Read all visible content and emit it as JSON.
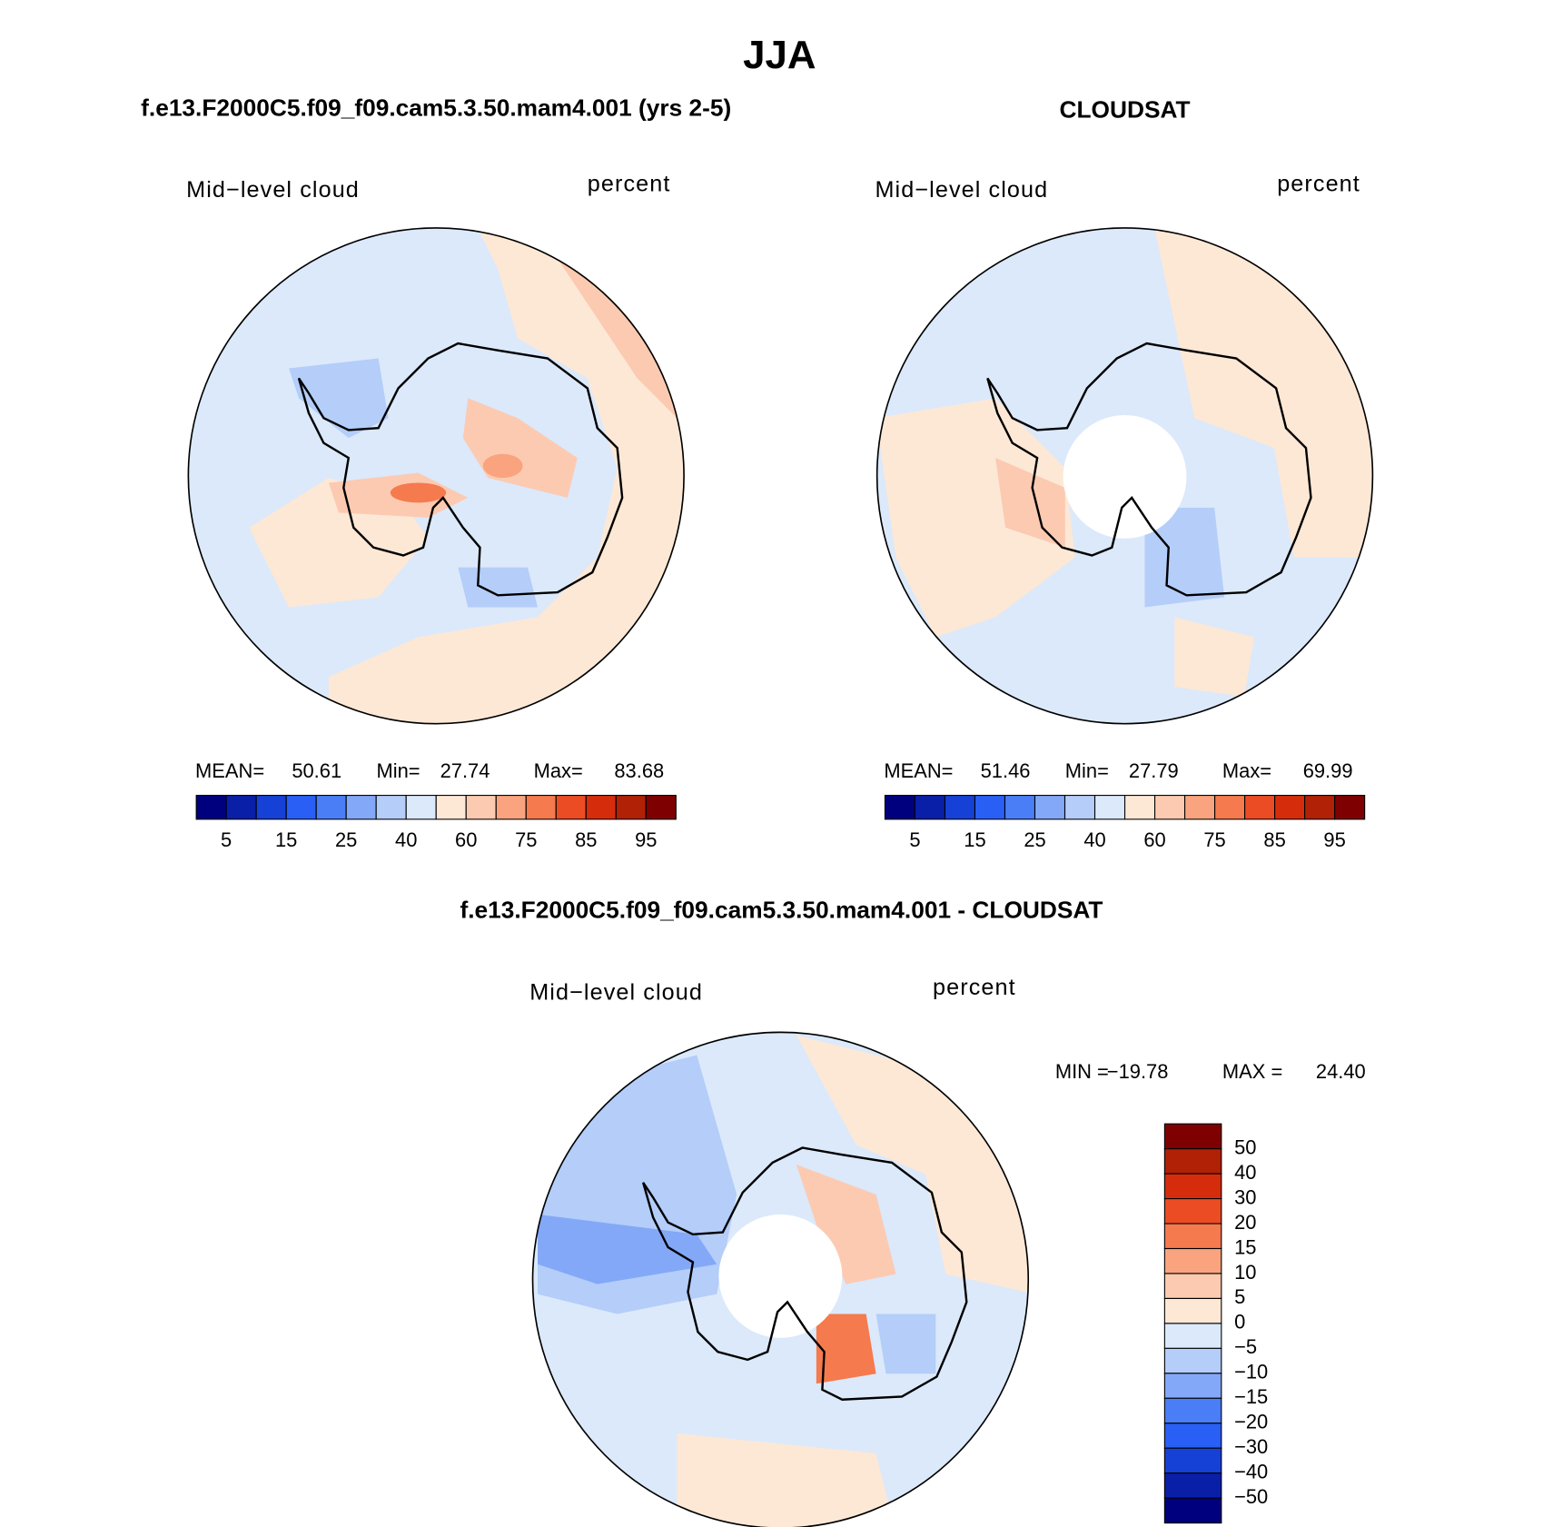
{
  "title": "JJA",
  "panels": [
    {
      "title": "f.e13.F2000C5.f09_f09.cam5.3.50.mam4.001 (yrs 2-5)",
      "variable": "Mid−level cloud",
      "units": "percent",
      "stats": [
        "MEAN=",
        "50.61",
        "Min=",
        "27.74",
        "Max=",
        "83.68"
      ],
      "colorbar": {
        "colors": [
          "#00007f",
          "#0a1fa8",
          "#1641d6",
          "#2a5ff5",
          "#4a7ef7",
          "#83a8f7",
          "#b4cdf9",
          "#dbe9fa",
          "#fde8d6",
          "#fccab1",
          "#f9a47e",
          "#f57a4e",
          "#ec4c24",
          "#d52d0c",
          "#b02106",
          "#7f0000"
        ],
        "labels": [
          "5",
          "15",
          "25",
          "40",
          "60",
          "75",
          "85",
          "95"
        ]
      }
    },
    {
      "title": "CLOUDSAT",
      "variable": "Mid−level cloud",
      "units": "percent",
      "stats": [
        "MEAN=",
        "51.46",
        "Min=",
        "27.79",
        "Max=",
        "69.99"
      ],
      "colorbar": {
        "colors": [
          "#00007f",
          "#0a1fa8",
          "#1641d6",
          "#2a5ff5",
          "#4a7ef7",
          "#83a8f7",
          "#b4cdf9",
          "#dbe9fa",
          "#fde8d6",
          "#fccab1",
          "#f9a47e",
          "#f57a4e",
          "#ec4c24",
          "#d52d0c",
          "#b02106",
          "#7f0000"
        ],
        "labels": [
          "5",
          "15",
          "25",
          "40",
          "60",
          "75",
          "85",
          "95"
        ]
      }
    },
    {
      "title": "f.e13.F2000C5.f09_f09.cam5.3.50.mam4.001 - CLOUDSAT",
      "variable": "Mid−level cloud",
      "units": "percent",
      "stats": [
        "MIN =",
        "−19.78",
        "MAX =",
        "24.40"
      ],
      "colorbar": {
        "colors": [
          "#7f0000",
          "#b02106",
          "#d52d0c",
          "#ec4c24",
          "#f57a4e",
          "#f9a47e",
          "#fccab1",
          "#fde8d6",
          "#dbe9fa",
          "#b4cdf9",
          "#83a8f7",
          "#4a7ef7",
          "#2a5ff5",
          "#1641d6",
          "#0a1fa8",
          "#00007f"
        ],
        "labels": [
          "50",
          "40",
          "30",
          "20",
          "15",
          "10",
          "5",
          "0",
          "−5",
          "−10",
          "−15",
          "−20",
          "−30",
          "−40",
          "−50"
        ]
      }
    }
  ]
}
